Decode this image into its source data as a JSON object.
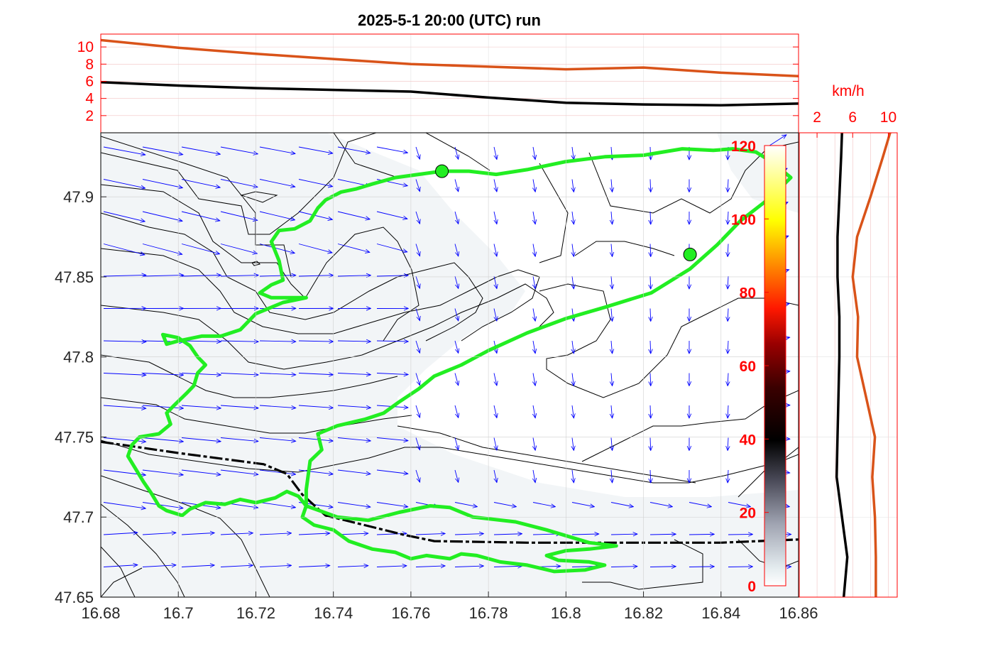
{
  "title": "2025-5-1  20:00 (UTC) run",
  "colors": {
    "series_orange": "#d95319",
    "series_black": "#000000",
    "track_green": "#22ee22",
    "wind_arrows": "#0000ff",
    "contours": "#000000",
    "fill_low": "#f2f5f7",
    "red_axis": "#ff0000",
    "border_dash": "#000000"
  },
  "chart_data": [
    {
      "id": "top_timeseries",
      "type": "line",
      "x": [
        16.68,
        16.7,
        16.72,
        16.74,
        16.76,
        16.78,
        16.8,
        16.82,
        16.84,
        16.86
      ],
      "xlim": [
        16.68,
        16.86
      ],
      "ylim": [
        0,
        11.5
      ],
      "ytick_labels": [
        "2",
        "4",
        "6",
        "8",
        "10"
      ],
      "grid": true,
      "series": [
        {
          "color": "orange",
          "values": [
            10.8,
            9.9,
            9.2,
            8.6,
            8.0,
            7.7,
            7.4,
            7.6,
            7.0,
            6.6
          ]
        },
        {
          "color": "black",
          "values": [
            5.9,
            5.5,
            5.2,
            5.0,
            4.8,
            4.1,
            3.5,
            3.3,
            3.2,
            3.4
          ]
        }
      ]
    },
    {
      "id": "main_map",
      "type": "map",
      "xlim": [
        16.68,
        16.86
      ],
      "ylim": [
        47.65,
        47.94
      ],
      "xtick_labels": [
        "16.68",
        "16.7",
        "16.72",
        "16.74",
        "16.76",
        "16.78",
        "16.8",
        "16.82",
        "16.84",
        "16.86"
      ],
      "ytick_labels": [
        "47.65",
        "47.7",
        "47.75",
        "47.8",
        "47.85",
        "47.9"
      ],
      "grid": true,
      "markers": [
        {
          "lon": 16.768,
          "lat": 47.916
        },
        {
          "lon": 16.832,
          "lat": 47.864
        }
      ],
      "lake_outline": [
        [
          16.768,
          47.916
        ],
        [
          16.756,
          47.912
        ],
        [
          16.75,
          47.908
        ],
        [
          16.746,
          47.905
        ],
        [
          16.742,
          47.903
        ],
        [
          16.738,
          47.898
        ],
        [
          16.736,
          47.893
        ],
        [
          16.734,
          47.885
        ],
        [
          16.73,
          47.88
        ],
        [
          16.726,
          47.879
        ],
        [
          16.724,
          47.872
        ],
        [
          16.726,
          47.86
        ],
        [
          16.727,
          47.848
        ],
        [
          16.724,
          47.845
        ],
        [
          16.721,
          47.84
        ],
        [
          16.724,
          47.837
        ],
        [
          16.733,
          47.837
        ],
        [
          16.727,
          47.834
        ],
        [
          16.723,
          47.83
        ],
        [
          16.72,
          47.827
        ],
        [
          16.718,
          47.822
        ],
        [
          16.716,
          47.817
        ],
        [
          16.711,
          47.813
        ],
        [
          16.706,
          47.813
        ],
        [
          16.7,
          47.81
        ],
        [
          16.697,
          47.808
        ],
        [
          16.696,
          47.814
        ],
        [
          16.7,
          47.812
        ],
        [
          16.703,
          47.807
        ],
        [
          16.705,
          47.8
        ],
        [
          16.707,
          47.795
        ],
        [
          16.705,
          47.79
        ],
        [
          16.704,
          47.782
        ],
        [
          16.702,
          47.777
        ],
        [
          16.699,
          47.77
        ],
        [
          16.697,
          47.765
        ],
        [
          16.698,
          47.758
        ],
        [
          16.695,
          47.752
        ],
        [
          16.69,
          47.75
        ],
        [
          16.688,
          47.745
        ],
        [
          16.687,
          47.738
        ],
        [
          16.689,
          47.73
        ],
        [
          16.691,
          47.722
        ],
        [
          16.693,
          47.715
        ],
        [
          16.695,
          47.707
        ],
        [
          16.697,
          47.704
        ],
        [
          16.701,
          47.701
        ],
        [
          16.703,
          47.705
        ],
        [
          16.707,
          47.709
        ],
        [
          16.712,
          47.708
        ],
        [
          16.716,
          47.711
        ],
        [
          16.72,
          47.709
        ],
        [
          16.725,
          47.712
        ],
        [
          16.728,
          47.716
        ],
        [
          16.731,
          47.713
        ],
        [
          16.733,
          47.707
        ],
        [
          16.732,
          47.7
        ],
        [
          16.735,
          47.695
        ],
        [
          16.74,
          47.692
        ],
        [
          16.744,
          47.685
        ],
        [
          16.75,
          47.68
        ],
        [
          16.756,
          47.678
        ],
        [
          16.76,
          47.674
        ],
        [
          16.764,
          47.676
        ],
        [
          16.77,
          47.674
        ],
        [
          16.773,
          47.677
        ],
        [
          16.777,
          47.676
        ],
        [
          16.783,
          47.672
        ],
        [
          16.79,
          47.67
        ],
        [
          16.797,
          47.666
        ],
        [
          16.805,
          47.667
        ],
        [
          16.81,
          47.67
        ],
        [
          16.806,
          47.672
        ],
        [
          16.798,
          47.673
        ],
        [
          16.795,
          47.676
        ],
        [
          16.8,
          47.679
        ],
        [
          16.806,
          47.68
        ],
        [
          16.813,
          47.682
        ],
        [
          16.806,
          47.684
        ],
        [
          16.795,
          47.692
        ],
        [
          16.787,
          47.697
        ],
        [
          16.776,
          47.7
        ],
        [
          16.77,
          47.706
        ],
        [
          16.765,
          47.707
        ],
        [
          16.757,
          47.703
        ],
        [
          16.749,
          47.698
        ],
        [
          16.741,
          47.7
        ],
        [
          16.733,
          47.707
        ],
        [
          16.733,
          47.717
        ],
        [
          16.734,
          47.735
        ],
        [
          16.737,
          47.742
        ],
        [
          16.736,
          47.752
        ],
        [
          16.741,
          47.757
        ],
        [
          16.748,
          47.761
        ],
        [
          16.753,
          47.765
        ],
        [
          16.757,
          47.772
        ],
        [
          16.762,
          47.78
        ],
        [
          16.766,
          47.788
        ],
        [
          16.773,
          47.795
        ],
        [
          16.78,
          47.804
        ],
        [
          16.79,
          47.815
        ],
        [
          16.8,
          47.824
        ],
        [
          16.81,
          47.831
        ],
        [
          16.822,
          47.84
        ],
        [
          16.832,
          47.855
        ],
        [
          16.839,
          47.87
        ],
        [
          16.845,
          47.885
        ],
        [
          16.853,
          47.9
        ],
        [
          16.858,
          47.912
        ],
        [
          16.853,
          47.922
        ],
        [
          16.849,
          47.928
        ],
        [
          16.843,
          47.93
        ],
        [
          16.838,
          47.929
        ],
        [
          16.83,
          47.93
        ],
        [
          16.82,
          47.926
        ],
        [
          16.81,
          47.925
        ],
        [
          16.8,
          47.922
        ],
        [
          16.79,
          47.917
        ],
        [
          16.782,
          47.914
        ],
        [
          16.775,
          47.916
        ],
        [
          16.768,
          47.916
        ]
      ],
      "border_dashed": [
        [
          16.68,
          47.747
        ],
        [
          16.7,
          47.74
        ],
        [
          16.722,
          47.733
        ],
        [
          16.728,
          47.727
        ],
        [
          16.732,
          47.714
        ],
        [
          16.738,
          47.701
        ],
        [
          16.748,
          47.695
        ],
        [
          16.758,
          47.689
        ],
        [
          16.766,
          47.685
        ],
        [
          16.79,
          47.684
        ],
        [
          16.82,
          47.684
        ],
        [
          16.84,
          47.684
        ],
        [
          16.86,
          47.686
        ]
      ]
    },
    {
      "id": "colorbar",
      "type": "colorbar",
      "range": [
        0,
        120
      ],
      "tick_labels": [
        "0",
        "20",
        "40",
        "60",
        "80",
        "100",
        "120"
      ]
    },
    {
      "id": "right_profile",
      "type": "line",
      "unit_label": "km/h",
      "xlim": [
        0,
        11
      ],
      "xtick_labels": [
        "2",
        "6",
        "10"
      ],
      "lat": [
        47.65,
        47.675,
        47.7,
        47.725,
        47.75,
        47.775,
        47.8,
        47.825,
        47.85,
        47.875,
        47.9,
        47.925,
        47.94
      ],
      "grid": true,
      "series": [
        {
          "color": "orange",
          "values": [
            8.6,
            8.6,
            8.5,
            8.2,
            8.5,
            7.5,
            6.5,
            6.6,
            6.0,
            6.5,
            8.0,
            9.4,
            10.2
          ]
        },
        {
          "color": "black",
          "values": [
            5.0,
            5.4,
            4.8,
            4.2,
            4.3,
            4.4,
            4.5,
            4.5,
            4.3,
            4.3,
            4.5,
            4.7,
            4.8
          ]
        }
      ]
    }
  ]
}
